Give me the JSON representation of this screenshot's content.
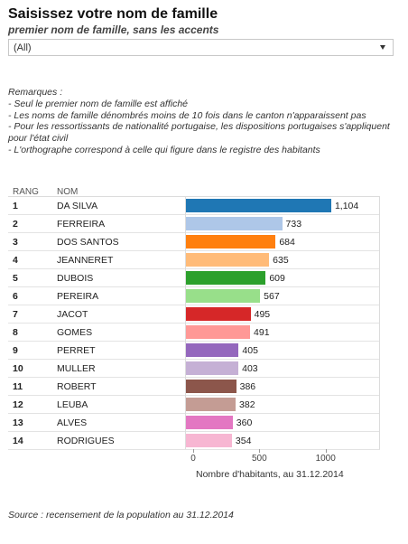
{
  "header": {
    "title": "Saisissez votre nom de famille",
    "subtitle": "premier nom de famille, sans les accents"
  },
  "filter": {
    "selected": "(All)",
    "icon": "chevron-down-icon"
  },
  "remarks": [
    "Remarques :",
    "- Seul le premier nom de famille est affiché",
    "- Les noms de famille dénombrés moins de 10 fois dans le canton n'apparaissent pas",
    "- Pour les ressortissants de nationalité portugaise, les dispositions portugaises s'appliquent pour l'état civil",
    "- L'orthographe correspond à celle qui figure dans le registre des habitants"
  ],
  "table": {
    "rank_header": "RANG",
    "name_header": "NOM"
  },
  "chart_data": {
    "type": "bar",
    "orientation": "horizontal",
    "categories": [
      "DA SILVA",
      "FERREIRA",
      "DOS SANTOS",
      "JEANNERET",
      "DUBOIS",
      "PEREIRA",
      "JACOT",
      "GOMES",
      "PERRET",
      "MULLER",
      "ROBERT",
      "LEUBA",
      "ALVES",
      "RODRIGUES"
    ],
    "ranks": [
      "1",
      "2",
      "3",
      "4",
      "5",
      "6",
      "7",
      "8",
      "9",
      "10",
      "11",
      "12",
      "13",
      "14"
    ],
    "values": [
      1104,
      733,
      684,
      635,
      609,
      567,
      495,
      491,
      405,
      403,
      386,
      382,
      360,
      354
    ],
    "value_labels": [
      "1,104",
      "733",
      "684",
      "635",
      "609",
      "567",
      "495",
      "491",
      "405",
      "403",
      "386",
      "382",
      "360",
      "354"
    ],
    "colors": [
      "#1f77b4",
      "#aec7e8",
      "#ff7f0e",
      "#ffbb78",
      "#2ca02c",
      "#98df8a",
      "#d62728",
      "#ff9896",
      "#9467bd",
      "#c5b0d5",
      "#8c564b",
      "#c49c94",
      "#e377c2",
      "#f7b6d2"
    ],
    "xlabel": "Nombre d'habitants, au 31.12.2014",
    "xticks": [
      "0",
      "500",
      "1000"
    ],
    "xtick_values": [
      0,
      500,
      1000
    ],
    "xlim": [
      0,
      1450
    ]
  },
  "footer": {
    "source": "Source : recensement de la population au 31.12.2014"
  }
}
